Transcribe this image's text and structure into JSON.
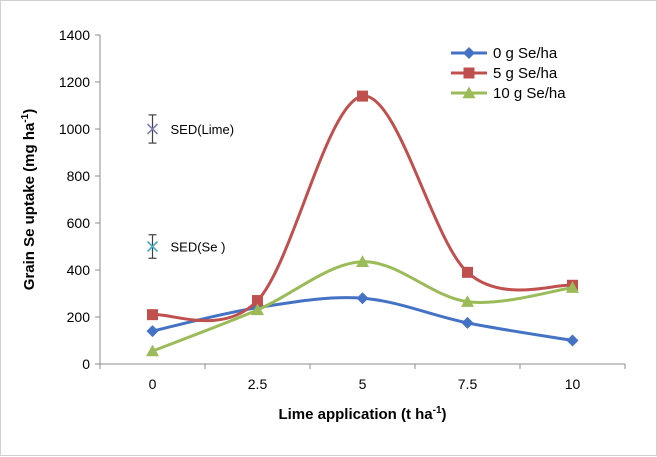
{
  "chart_data": {
    "type": "line",
    "x": [
      "0",
      "2.5",
      "5",
      "7.5",
      "10"
    ],
    "xlabel": "Lime application (t ha",
    "xlabel_sup": "-1",
    "xlabel_end": ")",
    "ylabel": "Grain Se uptake (mg ha",
    "ylabel_sup": "-1",
    "ylabel_end": ")",
    "ylim": [
      0,
      1400
    ],
    "yticks": [
      0,
      200,
      400,
      600,
      800,
      1000,
      1200,
      1400
    ],
    "grid": false,
    "legend_position": "top-right",
    "series": [
      {
        "name": "0 g Se/ha",
        "values": [
          140,
          240,
          280,
          175,
          100
        ],
        "color": "#4472C4",
        "marker": "diamond"
      },
      {
        "name": "5 g Se/ha",
        "values": [
          210,
          270,
          1140,
          390,
          335
        ],
        "color": "#C0504D",
        "marker": "square"
      },
      {
        "name": "10 g Se/ha",
        "values": [
          55,
          230,
          435,
          265,
          325
        ],
        "color": "#9BBB59",
        "marker": "triangle"
      }
    ],
    "annotations": [
      {
        "label": "SED(Lime)",
        "x_index": 0,
        "center": 1000,
        "half_range": 60,
        "marker_color": "#7F7FB2"
      },
      {
        "label": "SED(Se )",
        "x_index": 0,
        "center": 500,
        "half_range": 50,
        "marker_color": "#4BACC6"
      }
    ]
  }
}
